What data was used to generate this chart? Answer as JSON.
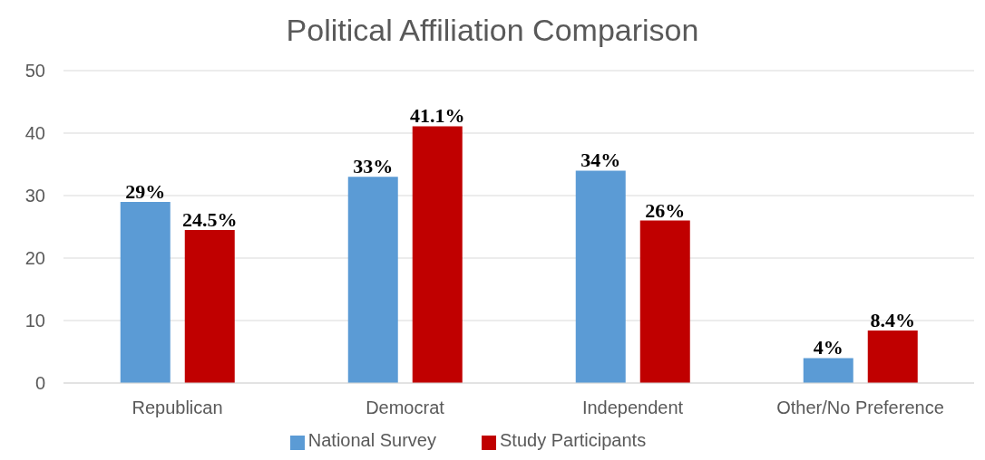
{
  "chart_data": {
    "type": "bar",
    "title": "Political Affiliation Comparison",
    "categories": [
      "Republican",
      "Democrat",
      "Independent",
      "Other/No Preference"
    ],
    "series": [
      {
        "name": "National Survey",
        "color": "#5b9bd5",
        "values": [
          29,
          33,
          34,
          4
        ],
        "value_labels": [
          "29%",
          "33%",
          "34%",
          "4%"
        ]
      },
      {
        "name": "Study Participants",
        "color": "#c00000",
        "values": [
          24.5,
          41.1,
          26,
          8.4
        ],
        "value_labels": [
          "24.5%",
          "41.1%",
          "26%",
          "8.4%"
        ]
      }
    ],
    "ylim": [
      0,
      50
    ],
    "yticks": [
      0,
      10,
      20,
      30,
      40,
      50
    ],
    "grid": "y",
    "legend": "bottom"
  }
}
